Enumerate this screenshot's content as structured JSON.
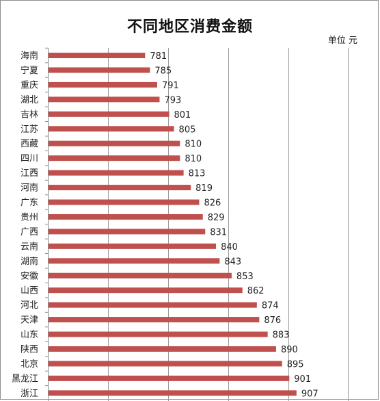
{
  "chart_data": {
    "type": "bar",
    "orientation": "horizontal",
    "title": "不同地区消费金额",
    "unit_label": "单位 元",
    "categories": [
      "海南",
      "宁夏",
      "重庆",
      "湖北",
      "吉林",
      "江苏",
      "西藏",
      "四川",
      "江西",
      "河南",
      "广东",
      "贵州",
      "广西",
      "云南",
      "湖南",
      "安徽",
      "山西",
      "河北",
      "天津",
      "山东",
      "陕西",
      "北京",
      "黑龙江",
      "浙江"
    ],
    "values": [
      781,
      785,
      791,
      793,
      801,
      805,
      810,
      810,
      813,
      819,
      826,
      829,
      831,
      840,
      843,
      853,
      862,
      874,
      876,
      883,
      890,
      895,
      901,
      907
    ],
    "xlim": [
      700,
      960
    ],
    "grid": true,
    "bar_color": "#c0504d",
    "data_labels": true
  }
}
